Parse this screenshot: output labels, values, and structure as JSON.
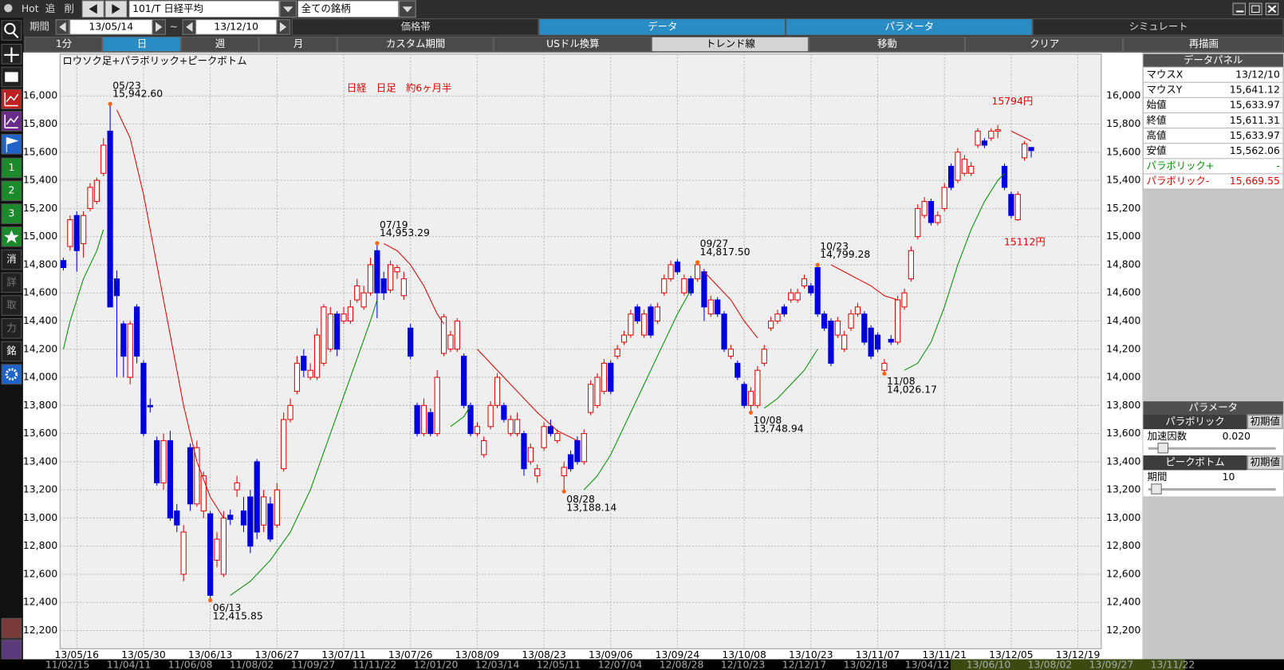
{
  "toolbar": {
    "hot": "Hot",
    "add": "追",
    "del": "削",
    "symbol": "101/T 日経平均",
    "universe": "全ての銘柄"
  },
  "period": {
    "label": "期間",
    "from": "13/05/14",
    "tilde": "~",
    "to": "13/12/10"
  },
  "tabs": [
    "価格帯",
    "データ",
    "パラメータ",
    "シミュレート"
  ],
  "buttons": [
    "1分",
    "日",
    "週",
    "月",
    "カスタム期間",
    "USドル換算",
    "トレンド線",
    "移動",
    "クリア",
    "再描画"
  ],
  "sidebar": [
    "1",
    "2",
    "3",
    "消",
    "詳",
    "取",
    "力",
    "銘"
  ],
  "chart_data": {
    "type": "candlestick",
    "title": "日経　日足　約6ヶ月半",
    "legend_text": "ロウソク足+パラボリック+ピークボトム",
    "notes": [
      "15794円",
      "15112円"
    ],
    "up_color": "#e00000",
    "down_color": "#0000dd",
    "grid": true,
    "ylim": [
      12071,
      16216
    ],
    "yticks": [
      {
        "value": 12200,
        "label": "12,200"
      },
      {
        "value": 12400,
        "label": "12,400"
      },
      {
        "value": 12600,
        "label": "12,600"
      },
      {
        "value": 12800,
        "label": "12,800"
      },
      {
        "value": 13000,
        "label": "13,000"
      },
      {
        "value": 13200,
        "label": "13,200"
      },
      {
        "value": 13400,
        "label": "13,400"
      },
      {
        "value": 13600,
        "label": "13,600"
      },
      {
        "value": 13800,
        "label": "13,800"
      },
      {
        "value": 14000,
        "label": "14,000"
      },
      {
        "value": 14200,
        "label": "14,200"
      },
      {
        "value": 14400,
        "label": "14,400"
      },
      {
        "value": 14600,
        "label": "14,600"
      },
      {
        "value": 14800,
        "label": "14,800"
      },
      {
        "value": 15000,
        "label": "15,000"
      },
      {
        "value": 15200,
        "label": "15,200"
      },
      {
        "value": 15400,
        "label": "15,400"
      },
      {
        "value": 15600,
        "label": "15,600"
      },
      {
        "value": 15800,
        "label": "15,800"
      },
      {
        "value": 16000,
        "label": "16,000"
      }
    ],
    "categories": [
      null,
      null,
      "13/05/16",
      null,
      null,
      null,
      null,
      null,
      null,
      null,
      null,
      null,
      "13/05/30",
      null,
      null,
      null,
      null,
      null,
      null,
      null,
      null,
      null,
      "13/06/13",
      null,
      null,
      null,
      null,
      null,
      null,
      null,
      null,
      null,
      "13/06/27",
      null,
      null,
      null,
      null,
      null,
      null,
      null,
      null,
      null,
      "13/07/11",
      null,
      null,
      null,
      null,
      null,
      null,
      null,
      null,
      null,
      "13/07/26",
      null,
      null,
      null,
      null,
      null,
      null,
      null,
      null,
      null,
      "13/08/09",
      null,
      null,
      null,
      null,
      null,
      null,
      null,
      null,
      null,
      "13/08/23",
      null,
      null,
      null,
      null,
      null,
      null,
      null,
      null,
      null,
      "13/09/06",
      null,
      null,
      null,
      null,
      null,
      null,
      null,
      null,
      null,
      "13/09/24",
      null,
      null,
      null,
      null,
      null,
      null,
      null,
      null,
      null,
      "13/10/08",
      null,
      null,
      null,
      null,
      null,
      null,
      null,
      null,
      null,
      "13/10/23",
      null,
      null,
      null,
      null,
      null,
      null,
      null,
      null,
      null,
      "13/11/07",
      null,
      null,
      null,
      null,
      null,
      null,
      null,
      null,
      null,
      "13/11/21",
      null,
      null,
      null,
      null,
      null,
      null,
      null,
      null,
      null,
      "13/12/05",
      null,
      null,
      null,
      null,
      null,
      null,
      null,
      null,
      null,
      "13/12/19",
      null,
      null,
      null
    ],
    "open": [
      14830,
      14930,
      15150,
      14950,
      15200,
      15250,
      15450,
      15750,
      14700,
      14380,
      14000,
      14500,
      14100,
      13800,
      13550,
      13250,
      13550,
      13050,
      12600,
      13500,
      13100,
      13050,
      13030,
      12700,
      12600,
      13020,
      13200,
      13050,
      13150,
      13400,
      12950,
      13100,
      12950,
      13350,
      13700,
      13900,
      14150,
      14000,
      14000,
      14100,
      14200,
      14450,
      14400,
      14400,
      14550,
      14500,
      14600,
      14900,
      14700,
      14620,
      14750,
      14580,
      14350,
      13800,
      13600,
      13750,
      13600,
      14170,
      14200,
      14200,
      14150,
      13800,
      13600,
      13450,
      13650,
      13800,
      13800,
      13600,
      13600,
      13600,
      13400,
      13300,
      13500,
      13650,
      13550,
      13300,
      13450,
      13550,
      13400,
      13750,
      13800,
      13900,
      14100,
      14150,
      14250,
      14300,
      14500,
      14300,
      14500,
      14400,
      14600,
      14700,
      14820,
      14600,
      14700,
      14700,
      14750,
      14450,
      14550,
      14450,
      14150,
      14100,
      13950,
      13800,
      13800,
      14100,
      14350,
      14400,
      14500,
      14550,
      14550,
      14650,
      14650,
      14780,
      14450,
      14400,
      14300,
      14200,
      14350,
      14450,
      14450,
      14350,
      14300,
      14050,
      14270,
      14250,
      14500,
      14700,
      15000,
      15150,
      15250,
      15100,
      15200,
      15500,
      15400,
      15450,
      15450,
      15650,
      15680,
      15700,
      15750,
      15500,
      15300,
      15120,
      15560,
      15633.97,
      null,
      null,
      null,
      null,
      null,
      null,
      null,
      null,
      null,
      null
    ],
    "high": [
      14850,
      15150,
      15180,
      15180,
      15380,
      15420,
      15700,
      15942.6,
      14760,
      14400,
      14400,
      14520,
      14120,
      13850,
      13580,
      13600,
      13620,
      13100,
      12950,
      13530,
      13550,
      13330,
      13050,
      12900,
      13050,
      13060,
      13300,
      13150,
      13200,
      13420,
      13200,
      13150,
      13250,
      13750,
      13850,
      14150,
      14200,
      14100,
      14350,
      14520,
      14500,
      14470,
      14500,
      14550,
      14700,
      14650,
      14850,
      14953.29,
      14750,
      14830,
      14800,
      14750,
      14380,
      13820,
      13850,
      13780,
      14050,
      14450,
      14330,
      14420,
      14170,
      13820,
      13680,
      13580,
      13830,
      14030,
      13820,
      13730,
      13750,
      13620,
      13530,
      13380,
      13680,
      13700,
      13630,
      13400,
      13480,
      13580,
      13630,
      13980,
      14030,
      14130,
      14120,
      14230,
      14330,
      14480,
      14520,
      14480,
      14520,
      14530,
      14730,
      14830,
      14840,
      14730,
      14720,
      14817.5,
      14770,
      14580,
      14570,
      14470,
      14230,
      14120,
      13970,
      13930,
      14080,
      14230,
      14430,
      14480,
      14520,
      14630,
      14630,
      14730,
      14670,
      14799.28,
      14470,
      14420,
      14430,
      14330,
      14480,
      14530,
      14470,
      14370,
      14320,
      14130,
      14300,
      14580,
      14630,
      14930,
      15230,
      15280,
      15270,
      15180,
      15380,
      15520,
      15630,
      15580,
      15530,
      15770,
      15700,
      15770,
      15794,
      15520,
      15320,
      15320,
      15680,
      15633.97,
      null,
      null,
      null,
      null,
      null,
      null,
      null,
      null,
      null,
      null
    ],
    "low": [
      14760,
      14900,
      14750,
      14850,
      15180,
      15230,
      15430,
      14500,
      14000,
      14000,
      13950,
      14100,
      13580,
      13750,
      13230,
      13200,
      12980,
      12900,
      12550,
      13050,
      13080,
      13000,
      12415.85,
      12650,
      12580,
      12950,
      13150,
      12900,
      12750,
      12850,
      12900,
      12830,
      12930,
      13330,
      13680,
      13880,
      14000,
      13980,
      13980,
      14080,
      14180,
      14150,
      14380,
      14380,
      14530,
      14480,
      14580,
      14420,
      14550,
      14600,
      14700,
      14550,
      14130,
      13580,
      13580,
      13580,
      13580,
      14150,
      14180,
      14180,
      13780,
      13580,
      13580,
      13430,
      13630,
      13780,
      13680,
      13580,
      13580,
      13300,
      13380,
      13250,
      13480,
      13580,
      13530,
      13188.14,
      13330,
      13380,
      13380,
      13730,
      13780,
      13880,
      13880,
      14130,
      14230,
      14280,
      14380,
      14280,
      14280,
      14380,
      14580,
      14680,
      14730,
      14580,
      14580,
      14680,
      14400,
      14430,
      14430,
      14180,
      14130,
      13980,
      13780,
      13748.94,
      13780,
      14080,
      14330,
      14380,
      14430,
      14530,
      14530,
      14630,
      14580,
      14430,
      14330,
      14080,
      14280,
      14180,
      14330,
      14430,
      14230,
      14130,
      14180,
      14026.17,
      14230,
      14230,
      14480,
      14680,
      14980,
      15130,
      15080,
      15080,
      15180,
      15330,
      15380,
      15430,
      15430,
      15630,
      15630,
      15680,
      15700,
      15330,
      15130,
      15112,
      15540,
      15562.06,
      null,
      null,
      null,
      null,
      null,
      null,
      null,
      null,
      null,
      null
    ],
    "close": [
      14780,
      15120,
      14900,
      15150,
      15350,
      15400,
      15650,
      14500,
      14580,
      14150,
      14380,
      14150,
      13600,
      13790,
      13250,
      13550,
      13000,
      12950,
      12900,
      13100,
      13500,
      13300,
      12450,
      12850,
      13000,
      12990,
      13250,
      12950,
      12800,
      12900,
      13150,
      12850,
      13200,
      13700,
      13800,
      14100,
      14050,
      14050,
      14300,
      14500,
      14450,
      14200,
      14450,
      14500,
      14650,
      14600,
      14800,
      14600,
      14600,
      14800,
      14780,
      14700,
      14150,
      13600,
      13800,
      13600,
      14000,
      14430,
      14300,
      14400,
      13800,
      13600,
      13650,
      13550,
      13800,
      14000,
      13700,
      13700,
      13700,
      13350,
      13500,
      13350,
      13650,
      13600,
      13600,
      13360,
      13350,
      13400,
      13600,
      13950,
      14000,
      14100,
      13900,
      14200,
      14300,
      14450,
      14400,
      14450,
      14300,
      14500,
      14700,
      14800,
      14750,
      14700,
      14600,
      14800,
      14500,
      14550,
      14450,
      14200,
      14200,
      14000,
      13800,
      13900,
      14050,
      14200,
      14400,
      14450,
      14450,
      14600,
      14600,
      14700,
      14600,
      14450,
      14350,
      14100,
      14400,
      14300,
      14450,
      14500,
      14250,
      14150,
      14200,
      14100,
      14250,
      14550,
      14600,
      14900,
      15200,
      15250,
      15100,
      15150,
      15350,
      15350,
      15600,
      15550,
      15500,
      15750,
      15650,
      15750,
      15760,
      15350,
      15150,
      15300,
      15660,
      15611.31,
      null,
      null,
      null,
      null,
      null,
      null,
      null,
      null,
      null,
      null
    ],
    "sar_lines": [
      {
        "color": "#009000",
        "x": [
          0,
          1,
          2,
          3,
          4,
          5,
          6
        ],
        "values": [
          14200,
          14400,
          14550,
          14700,
          14800,
          14900,
          15050
        ]
      },
      {
        "color": "#e00000",
        "x": [
          8,
          10,
          12,
          14,
          16,
          18,
          20,
          22,
          24
        ],
        "values": [
          15900,
          15700,
          15300,
          14800,
          14300,
          13800,
          13400,
          13150,
          13000
        ]
      },
      {
        "color": "#009000",
        "x": [
          25,
          28,
          31,
          34,
          37,
          40,
          43,
          46,
          47
        ],
        "values": [
          12450,
          12550,
          12700,
          12900,
          13200,
          13600,
          14000,
          14400,
          14550
        ]
      },
      {
        "color": "#e00000",
        "x": [
          48,
          50,
          52,
          54,
          56,
          57
        ],
        "values": [
          14950,
          14900,
          14800,
          14650,
          14450,
          14380
        ]
      },
      {
        "color": "#009000",
        "x": [
          58,
          60,
          61
        ],
        "values": [
          13650,
          13720,
          13800
        ]
      },
      {
        "color": "#e00000",
        "x": [
          62,
          65,
          68,
          71,
          74,
          77
        ],
        "values": [
          14200,
          14050,
          13900,
          13750,
          13620,
          13550
        ]
      },
      {
        "color": "#009000",
        "x": [
          78,
          80,
          82,
          84,
          86,
          88,
          90,
          92,
          94
        ],
        "values": [
          13200,
          13300,
          13450,
          13650,
          13850,
          14050,
          14250,
          14450,
          14620
        ]
      },
      {
        "color": "#e00000",
        "x": [
          96,
          98,
          100,
          102,
          104
        ],
        "values": [
          14750,
          14650,
          14550,
          14400,
          14280
        ]
      },
      {
        "color": "#009000",
        "x": [
          105,
          107,
          109,
          111,
          113
        ],
        "values": [
          13780,
          13850,
          13950,
          14050,
          14200
        ]
      },
      {
        "color": "#e00000",
        "x": [
          115,
          117,
          119,
          121,
          123,
          125
        ],
        "values": [
          14800,
          14750,
          14700,
          14650,
          14580,
          14550
        ]
      },
      {
        "color": "#009000",
        "x": [
          126,
          128,
          130,
          132,
          134,
          136,
          138,
          140,
          141
        ],
        "values": [
          14050,
          14100,
          14250,
          14500,
          14800,
          15050,
          15250,
          15400,
          15450
        ]
      },
      {
        "color": "#e00000",
        "x": [
          142,
          145
        ],
        "values": [
          15750,
          15680
        ]
      }
    ],
    "peaks": [
      {
        "index": 7,
        "kind": "peak",
        "label": "05/23",
        "value": 15942.6,
        "value_label": "15,942.60"
      },
      {
        "index": 22,
        "kind": "bottom",
        "label": "06/13",
        "value": 12415.85,
        "value_label": "12,415.85"
      },
      {
        "index": 47,
        "kind": "peak",
        "label": "07/19",
        "value": 14953.29,
        "value_label": "14,953.29"
      },
      {
        "index": 75,
        "kind": "bottom",
        "label": "08/28",
        "value": 13188.14,
        "value_label": "13,188.14"
      },
      {
        "index": 95,
        "kind": "peak",
        "label": "09/27",
        "value": 14817.5,
        "value_label": "14,817.50"
      },
      {
        "index": 103,
        "kind": "bottom",
        "label": "10/08",
        "value": 13748.94,
        "value_label": "13,748.94"
      },
      {
        "index": 113,
        "kind": "peak",
        "label": "10/23",
        "value": 14799.28,
        "value_label": "14,799.28"
      },
      {
        "index": 123,
        "kind": "bottom",
        "label": "11/08",
        "value": 14026.17,
        "value_label": "14,026.17"
      }
    ]
  },
  "data_panel": {
    "title": "データパネル",
    "rows": [
      [
        "マウスX",
        "13/12/10"
      ],
      [
        "マウスY",
        "15,641.12"
      ],
      [
        "始値",
        "15,633.97"
      ],
      [
        "終値",
        "15,611.31"
      ],
      [
        "高値",
        "15,633.97"
      ],
      [
        "安値",
        "15,562.06"
      ],
      [
        "パラボリック+",
        "-"
      ],
      [
        "パラボリック-",
        "15,669.55"
      ]
    ]
  },
  "param_panel": {
    "title": "パラメータ",
    "groups": [
      {
        "name": "パラボリック",
        "reset": "初期値",
        "param": "加速因数",
        "value": "0.020"
      },
      {
        "name": "ピークボトム",
        "reset": "初期値",
        "param": "期間",
        "value": "10"
      }
    ]
  },
  "history_bar": [
    "11/02/15",
    "11/04/11",
    "11/06/08",
    "11/08/02",
    "11/09/27",
    "11/11/22",
    "12/01/20",
    "12/03/14",
    "12/05/11",
    "12/07/04",
    "12/08/28",
    "12/10/23",
    "12/12/17",
    "13/02/18",
    "13/04/12",
    "13/06/10",
    "13/08/02",
    "13/09/27",
    "13/11/22"
  ]
}
